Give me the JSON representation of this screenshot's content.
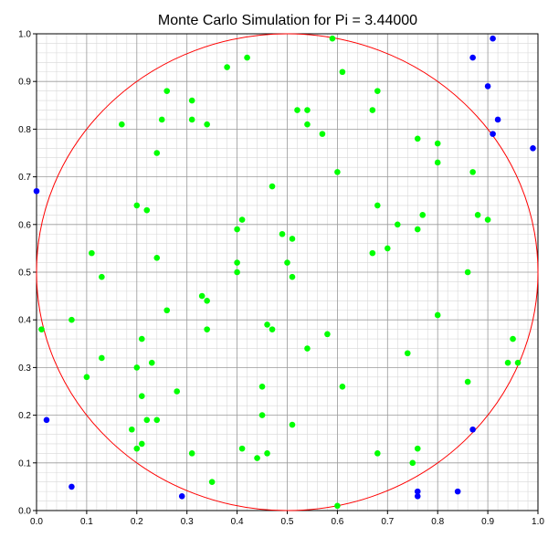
{
  "chart_data": {
    "type": "scatter",
    "title": "Monte Carlo Simulation for Pi = 3.44000",
    "xlabel": "",
    "ylabel": "",
    "xlim": [
      0,
      1
    ],
    "ylim": [
      0,
      1
    ],
    "grid": true,
    "x_ticks": [
      "0.0",
      "0.1",
      "0.2",
      "0.3",
      "0.4",
      "0.5",
      "0.6",
      "0.7",
      "0.8",
      "0.9",
      "1.0"
    ],
    "y_ticks": [
      "0.0",
      "0.1",
      "0.2",
      "0.3",
      "0.4",
      "0.5",
      "0.6",
      "0.7",
      "0.8",
      "0.9",
      "1.0"
    ],
    "circle": {
      "cx": 0.5,
      "cy": 0.5,
      "r": 0.5,
      "color": "#ff0000"
    },
    "series": [
      {
        "color": "#00ff00",
        "points": [
          [
            0.59,
            0.99
          ],
          [
            0.42,
            0.95
          ],
          [
            0.38,
            0.93
          ],
          [
            0.61,
            0.92
          ],
          [
            0.26,
            0.88
          ],
          [
            0.68,
            0.88
          ],
          [
            0.31,
            0.86
          ],
          [
            0.52,
            0.84
          ],
          [
            0.54,
            0.84
          ],
          [
            0.67,
            0.84
          ],
          [
            0.31,
            0.82
          ],
          [
            0.25,
            0.82
          ],
          [
            0.17,
            0.81
          ],
          [
            0.34,
            0.81
          ],
          [
            0.54,
            0.81
          ],
          [
            0.57,
            0.79
          ],
          [
            0.76,
            0.78
          ],
          [
            0.8,
            0.77
          ],
          [
            0.24,
            0.75
          ],
          [
            0.8,
            0.73
          ],
          [
            0.6,
            0.71
          ],
          [
            0.87,
            0.71
          ],
          [
            0.47,
            0.68
          ],
          [
            0.68,
            0.64
          ],
          [
            0.2,
            0.64
          ],
          [
            0.22,
            0.63
          ],
          [
            0.77,
            0.62
          ],
          [
            0.88,
            0.62
          ],
          [
            0.9,
            0.61
          ],
          [
            0.41,
            0.61
          ],
          [
            0.72,
            0.6
          ],
          [
            0.4,
            0.59
          ],
          [
            0.76,
            0.59
          ],
          [
            0.49,
            0.58
          ],
          [
            0.51,
            0.57
          ],
          [
            0.7,
            0.55
          ],
          [
            0.11,
            0.54
          ],
          [
            0.67,
            0.54
          ],
          [
            0.24,
            0.53
          ],
          [
            0.4,
            0.52
          ],
          [
            0.5,
            0.52
          ],
          [
            0.4,
            0.5
          ],
          [
            0.51,
            0.49
          ],
          [
            0.86,
            0.5
          ],
          [
            0.13,
            0.49
          ],
          [
            0.33,
            0.45
          ],
          [
            0.34,
            0.44
          ],
          [
            0.26,
            0.42
          ],
          [
            0.8,
            0.41
          ],
          [
            0.07,
            0.4
          ],
          [
            0.46,
            0.39
          ],
          [
            0.47,
            0.38
          ],
          [
            0.01,
            0.38
          ],
          [
            0.34,
            0.38
          ],
          [
            0.58,
            0.37
          ],
          [
            0.95,
            0.36
          ],
          [
            0.21,
            0.36
          ],
          [
            0.54,
            0.34
          ],
          [
            0.74,
            0.33
          ],
          [
            0.13,
            0.32
          ],
          [
            0.23,
            0.31
          ],
          [
            0.94,
            0.31
          ],
          [
            0.96,
            0.31
          ],
          [
            0.2,
            0.3
          ],
          [
            0.1,
            0.28
          ],
          [
            0.86,
            0.27
          ],
          [
            0.45,
            0.26
          ],
          [
            0.61,
            0.26
          ],
          [
            0.28,
            0.25
          ],
          [
            0.21,
            0.24
          ],
          [
            0.45,
            0.2
          ],
          [
            0.22,
            0.19
          ],
          [
            0.24,
            0.19
          ],
          [
            0.51,
            0.18
          ],
          [
            0.19,
            0.17
          ],
          [
            0.21,
            0.14
          ],
          [
            0.2,
            0.13
          ],
          [
            0.41,
            0.13
          ],
          [
            0.76,
            0.13
          ],
          [
            0.31,
            0.12
          ],
          [
            0.46,
            0.12
          ],
          [
            0.68,
            0.12
          ],
          [
            0.44,
            0.11
          ],
          [
            0.75,
            0.1
          ],
          [
            0.35,
            0.06
          ],
          [
            0.6,
            0.01
          ]
        ]
      },
      {
        "color": "#0000ff",
        "points": [
          [
            0.91,
            0.99
          ],
          [
            0.87,
            0.95
          ],
          [
            0.9,
            0.89
          ],
          [
            0.92,
            0.82
          ],
          [
            0.91,
            0.79
          ],
          [
            0.99,
            0.76
          ],
          [
            0.0,
            0.67
          ],
          [
            0.02,
            0.19
          ],
          [
            0.87,
            0.17
          ],
          [
            0.07,
            0.05
          ],
          [
            0.29,
            0.03
          ],
          [
            0.84,
            0.04
          ],
          [
            0.76,
            0.04
          ],
          [
            0.76,
            0.03
          ]
        ]
      }
    ]
  }
}
